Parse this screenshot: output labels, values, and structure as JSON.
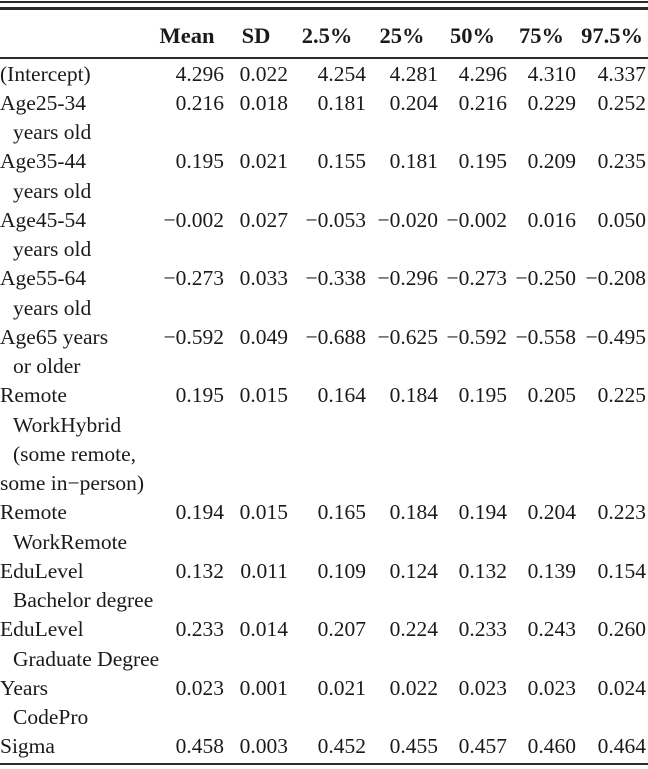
{
  "colors": {
    "background": "#ffffff",
    "text": "#1a1a1a",
    "rule": "#2b2b2b"
  },
  "table": {
    "columns": [
      "Mean",
      "SD",
      "2.5%",
      "25%",
      "50%",
      "75%",
      "97.5%"
    ],
    "rows": [
      {
        "label_lines": [
          {
            "text": "(Intercept)",
            "indent": false
          }
        ],
        "values": [
          "4.296",
          "0.022",
          "4.254",
          "4.281",
          "4.296",
          "4.310",
          "4.337"
        ]
      },
      {
        "label_lines": [
          {
            "text": "Age25-34",
            "indent": false
          },
          {
            "text": "years old",
            "indent": true
          }
        ],
        "values": [
          "0.216",
          "0.018",
          "0.181",
          "0.204",
          "0.216",
          "0.229",
          "0.252"
        ]
      },
      {
        "label_lines": [
          {
            "text": "Age35-44",
            "indent": false
          },
          {
            "text": "years old",
            "indent": true
          }
        ],
        "values": [
          "0.195",
          "0.021",
          "0.155",
          "0.181",
          "0.195",
          "0.209",
          "0.235"
        ]
      },
      {
        "label_lines": [
          {
            "text": "Age45-54",
            "indent": false
          },
          {
            "text": "years old",
            "indent": true
          }
        ],
        "values": [
          "−0.002",
          "0.027",
          "−0.053",
          "−0.020",
          "−0.002",
          "0.016",
          "0.050"
        ]
      },
      {
        "label_lines": [
          {
            "text": "Age55-64",
            "indent": false
          },
          {
            "text": "years old",
            "indent": true
          }
        ],
        "values": [
          "−0.273",
          "0.033",
          "−0.338",
          "−0.296",
          "−0.273",
          "−0.250",
          "−0.208"
        ]
      },
      {
        "label_lines": [
          {
            "text": "Age65 years",
            "indent": false
          },
          {
            "text": "or older",
            "indent": true
          }
        ],
        "values": [
          "−0.592",
          "0.049",
          "−0.688",
          "−0.625",
          "−0.592",
          "−0.558",
          "−0.495"
        ]
      },
      {
        "label_lines": [
          {
            "text": "Remote",
            "indent": false
          },
          {
            "text": "WorkHybrid",
            "indent": true
          },
          {
            "text": "(some remote,",
            "indent": true
          },
          {
            "text": "some in−person)",
            "indent": false
          }
        ],
        "values": [
          "0.195",
          "0.015",
          "0.164",
          "0.184",
          "0.195",
          "0.205",
          "0.225"
        ]
      },
      {
        "label_lines": [
          {
            "text": "Remote",
            "indent": false
          },
          {
            "text": "WorkRemote",
            "indent": true
          }
        ],
        "values": [
          "0.194",
          "0.015",
          "0.165",
          "0.184",
          "0.194",
          "0.204",
          "0.223"
        ]
      },
      {
        "label_lines": [
          {
            "text": "EduLevel",
            "indent": false
          },
          {
            "text": "Bachelor degree",
            "indent": true
          }
        ],
        "values": [
          "0.132",
          "0.011",
          "0.109",
          "0.124",
          "0.132",
          "0.139",
          "0.154"
        ]
      },
      {
        "label_lines": [
          {
            "text": "EduLevel",
            "indent": false
          },
          {
            "text": "Graduate Degree",
            "indent": true
          }
        ],
        "values": [
          "0.233",
          "0.014",
          "0.207",
          "0.224",
          "0.233",
          "0.243",
          "0.260"
        ]
      },
      {
        "label_lines": [
          {
            "text": "Years",
            "indent": false
          },
          {
            "text": "CodePro",
            "indent": true
          }
        ],
        "values": [
          "0.023",
          "0.001",
          "0.021",
          "0.022",
          "0.023",
          "0.023",
          "0.024"
        ]
      },
      {
        "label_lines": [
          {
            "text": "Sigma",
            "indent": false
          }
        ],
        "values": [
          "0.458",
          "0.003",
          "0.452",
          "0.455",
          "0.457",
          "0.460",
          "0.464"
        ]
      }
    ]
  }
}
